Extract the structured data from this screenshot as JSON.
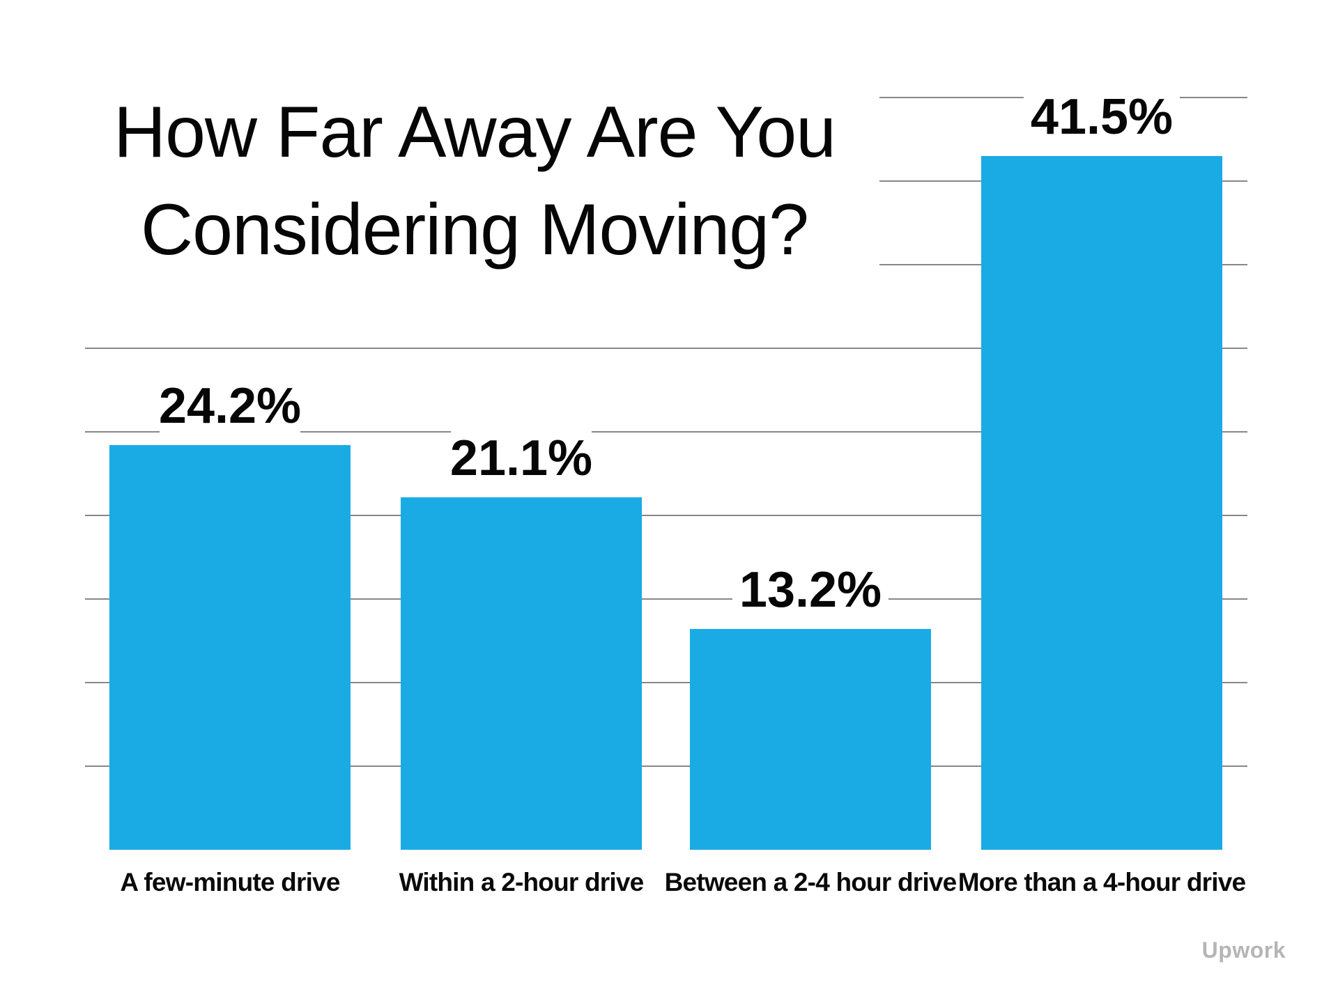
{
  "chart_data": {
    "type": "bar",
    "title": "How Far Away Are You Considering Moving?",
    "title_lines": [
      "How Far Away Are You",
      "Considering Moving?"
    ],
    "categories": [
      "A few-minute drive",
      "Within a 2-hour drive",
      "Between a 2-4 hour drive",
      "More than a 4-hour drive"
    ],
    "values": [
      24.2,
      21.1,
      13.2,
      41.5
    ],
    "value_labels": [
      "24.2%",
      "21.1%",
      "13.2%",
      "41.5%"
    ],
    "ylabel": "",
    "xlabel": "",
    "ylim": [
      0,
      47.5
    ],
    "gridline_interval_pct": 5,
    "gridlines_pct": [
      5,
      10,
      15,
      20,
      25,
      30,
      35,
      40,
      45
    ],
    "grid": true,
    "legend": false,
    "bar_color": "#1AABE4",
    "gridline_color": "#878787",
    "text_color": "#060606"
  },
  "watermark": {
    "label": "Upwork",
    "color": "#b5b5b5"
  }
}
